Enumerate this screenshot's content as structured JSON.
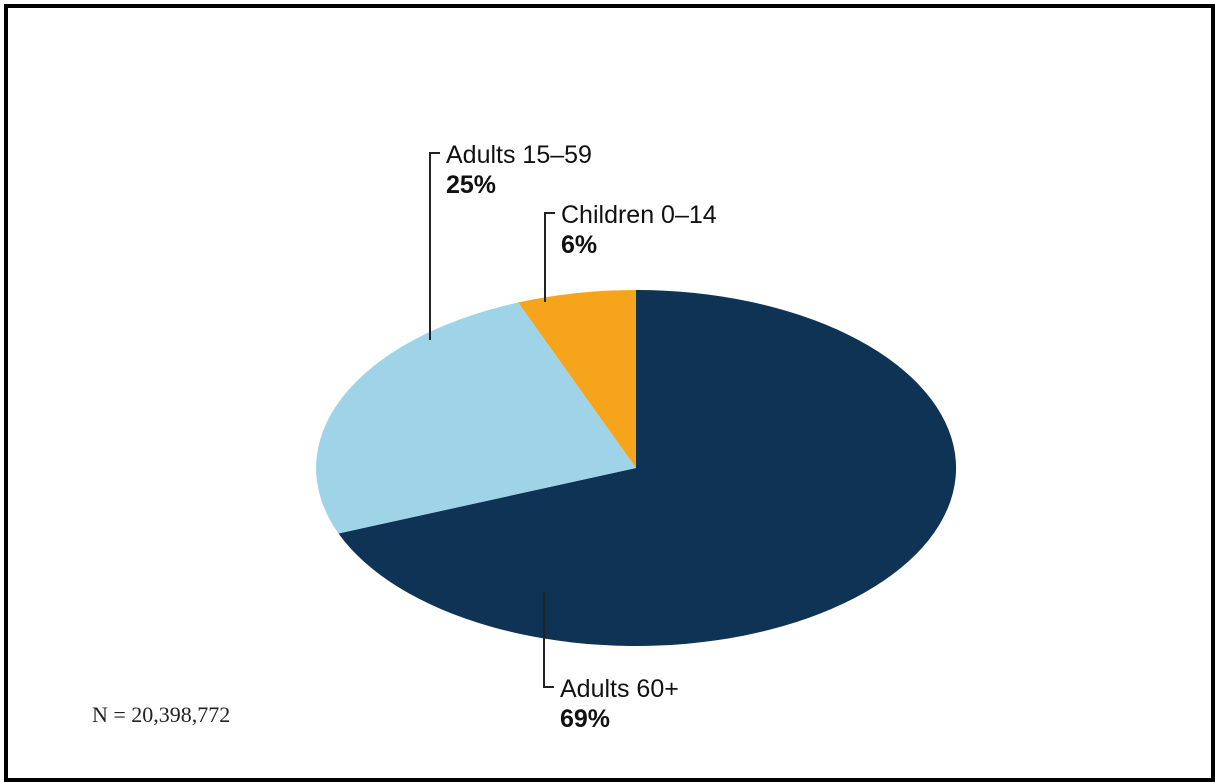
{
  "chart_data": {
    "type": "pie",
    "slices": [
      {
        "name": "Adults 60+",
        "label": "69%",
        "value": 69,
        "color": "#0e3354"
      },
      {
        "name": "Adults 15–59",
        "label": "25%",
        "value": 25,
        "color": "#9fd4e8"
      },
      {
        "name": "Children 0–14",
        "label": "6%",
        "value": 6,
        "color": "#f6a41c"
      }
    ],
    "start_angle": "12 o'clock",
    "direction": "clockwise",
    "legend": "none (leader-line labels)"
  },
  "note": "N = 20,398,772"
}
